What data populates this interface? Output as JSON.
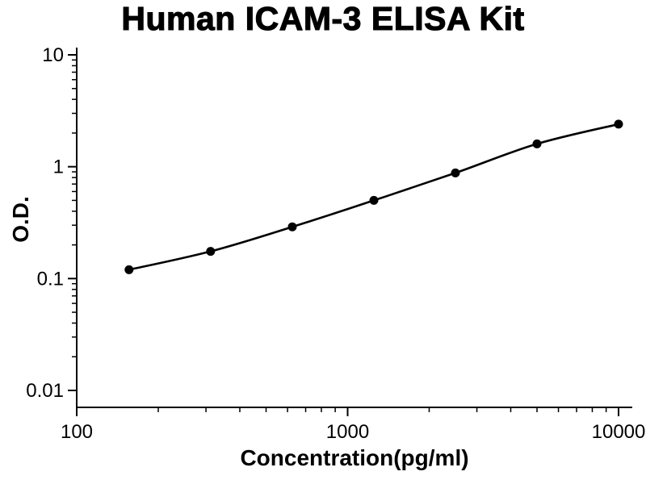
{
  "chart_data": {
    "type": "line",
    "title": "Human ICAM-3 ELISA Kit",
    "xlabel": "Concentration(pg/ml)",
    "ylabel": "O.D.",
    "x_scale": "log",
    "y_scale": "log",
    "xlim": [
      100,
      10000
    ],
    "ylim": [
      0.01,
      10
    ],
    "x": [
      156,
      312,
      625,
      1250,
      2500,
      5000,
      10000
    ],
    "y": [
      0.12,
      0.175,
      0.29,
      0.5,
      0.88,
      1.6,
      2.4
    ],
    "x_ticks": [
      100,
      1000,
      10000
    ],
    "x_tick_labels": [
      "100",
      "1000",
      "10000"
    ],
    "y_ticks": [
      10,
      1,
      0.1,
      0.01
    ],
    "y_tick_labels": [
      "10",
      "1",
      "0.1",
      "0.01"
    ],
    "grid": false,
    "legend": "none",
    "line_color": "#000000",
    "marker": "circle",
    "marker_color": "#000000",
    "background": "#ffffff"
  }
}
